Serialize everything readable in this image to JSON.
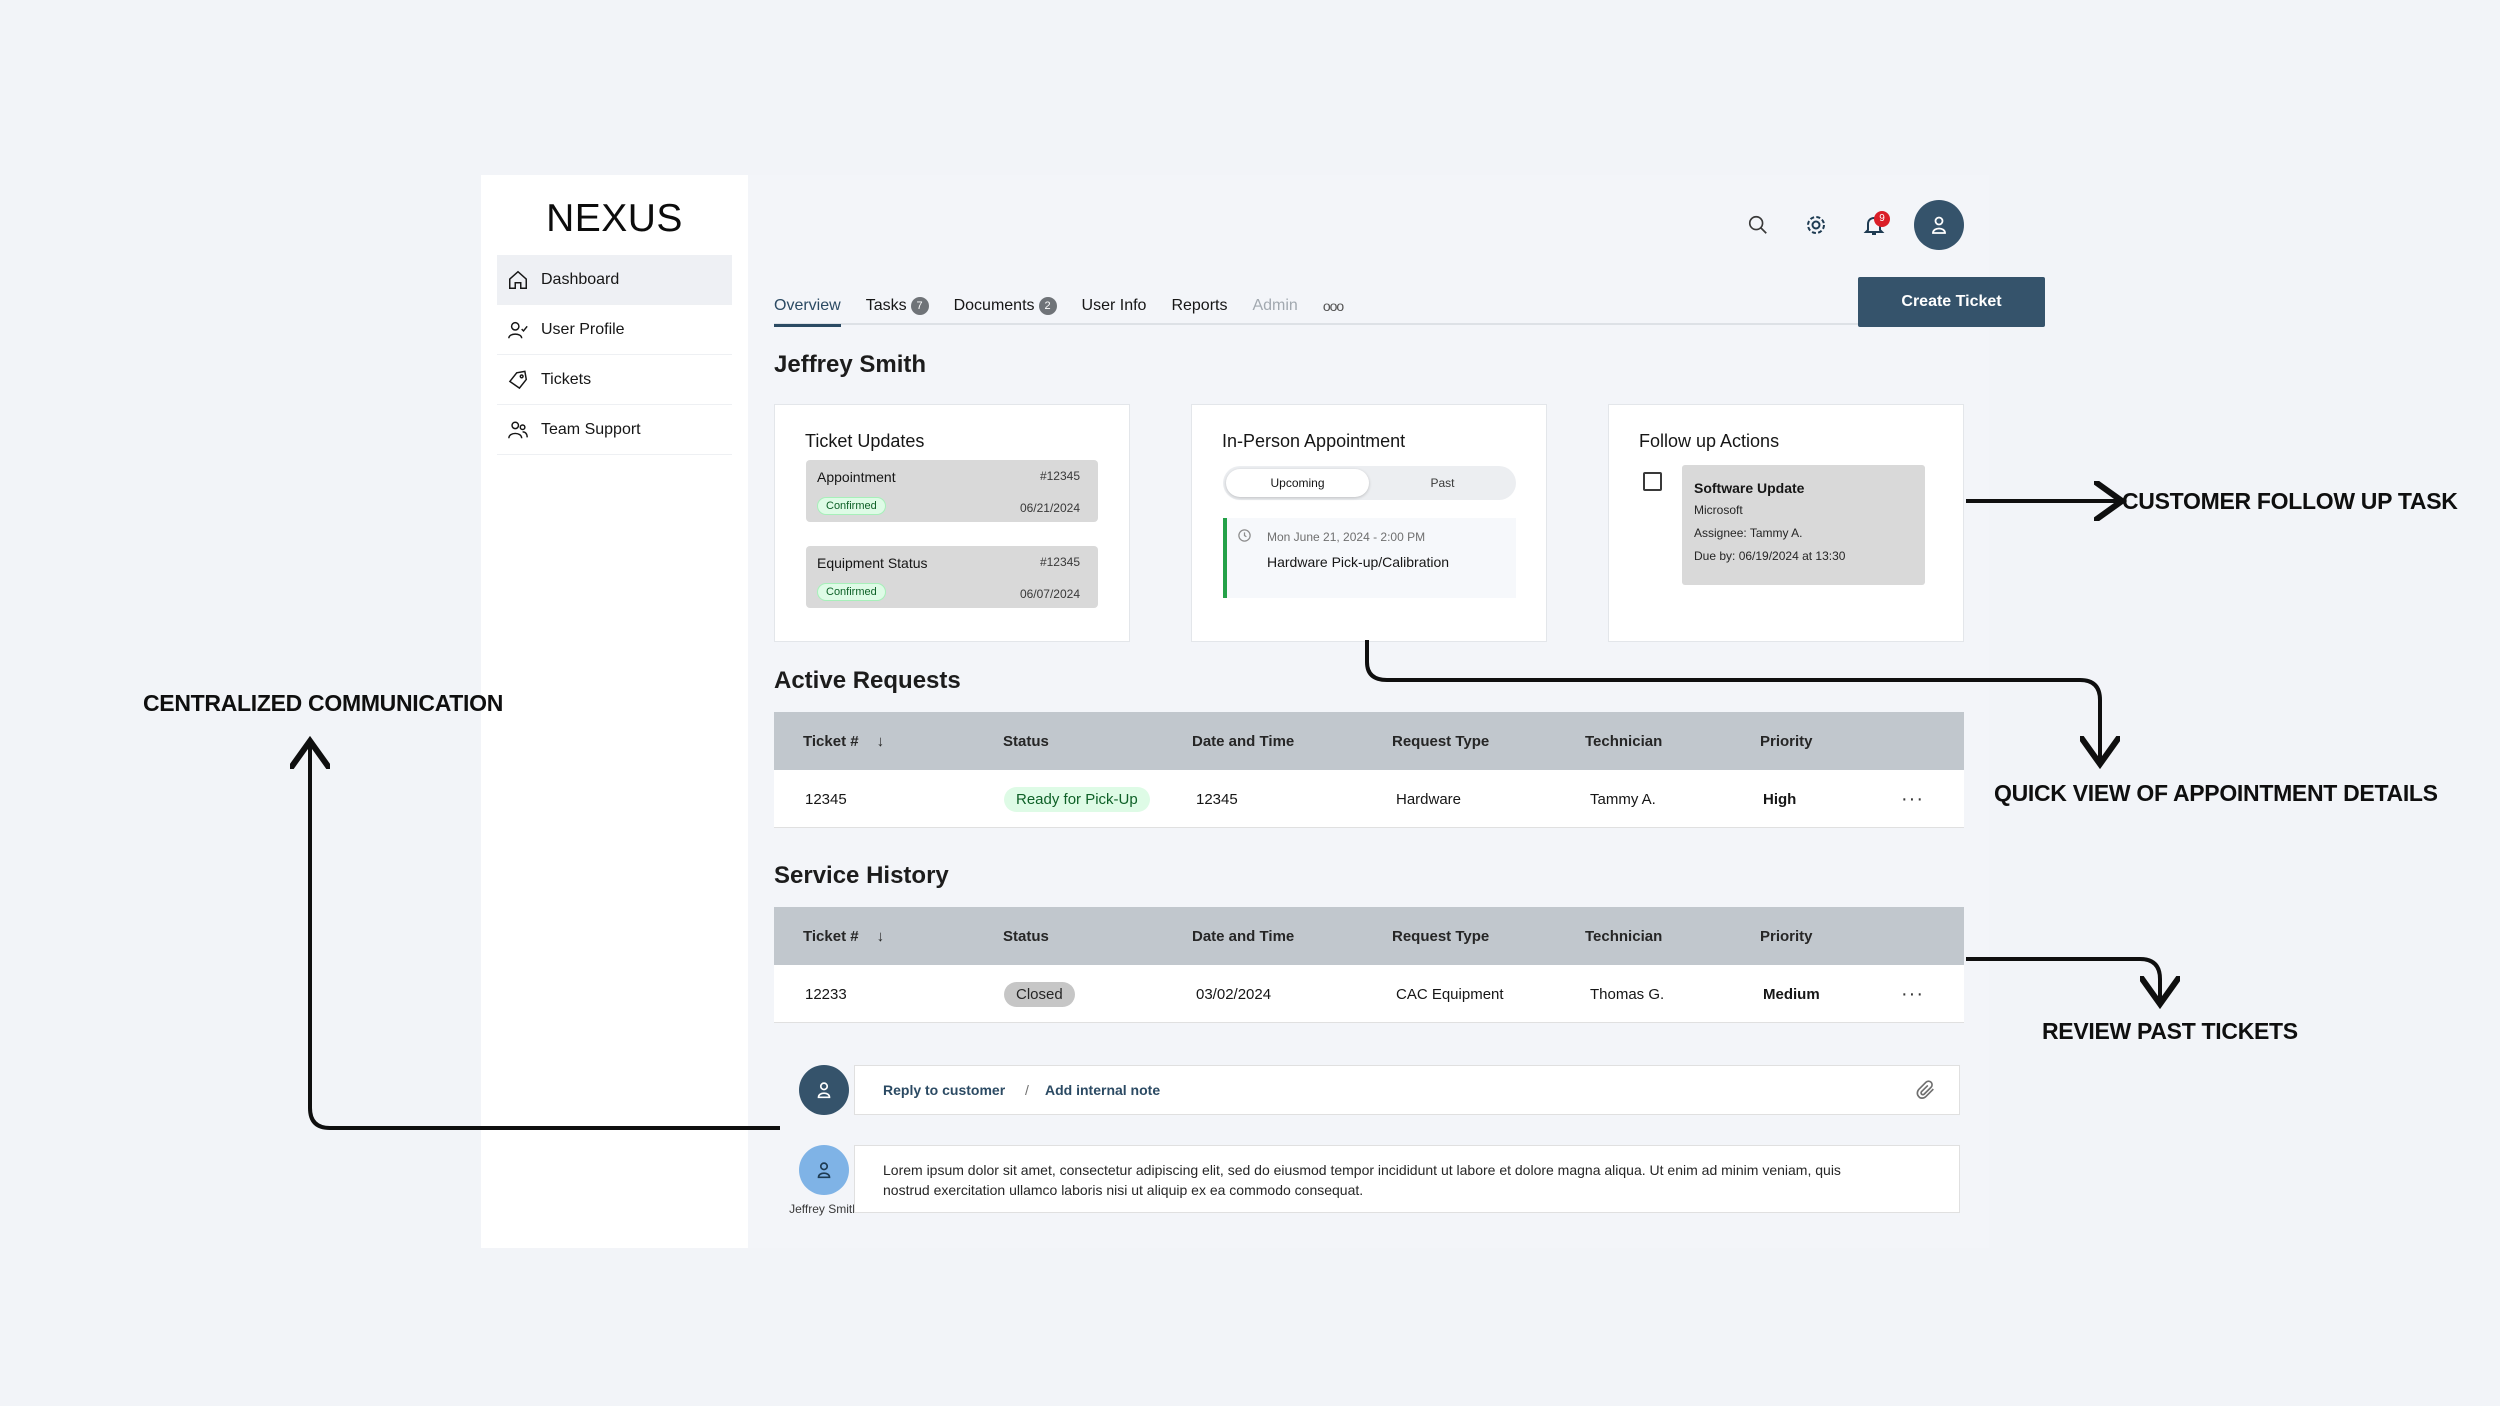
{
  "sidebar": {
    "logo": "NEXUS",
    "items": [
      {
        "label": "Dashboard",
        "icon": "home-icon"
      },
      {
        "label": "User Profile",
        "icon": "user-check-icon"
      },
      {
        "label": "Tickets",
        "icon": "ticket-icon"
      },
      {
        "label": "Team Support",
        "icon": "group-icon"
      }
    ]
  },
  "header": {
    "notification_count": "9"
  },
  "tabs": [
    {
      "label": "Overview",
      "count": ""
    },
    {
      "label": "Tasks",
      "count": "7"
    },
    {
      "label": "Documents",
      "count": "2"
    },
    {
      "label": "User Info",
      "count": ""
    },
    {
      "label": "Reports",
      "count": ""
    },
    {
      "label": "Admin",
      "count": ""
    },
    {
      "label": "ooo",
      "count": ""
    }
  ],
  "create_ticket_label": "Create Ticket",
  "user_name": "Jeffrey Smith",
  "ticket_updates": {
    "title": "Ticket Updates",
    "items": [
      {
        "label": "Appointment",
        "id": "#12345",
        "status": "Confirmed",
        "date": "06/21/2024"
      },
      {
        "label": "Equipment Status",
        "id": "#12345",
        "status": "Confirmed",
        "date": "06/07/2024"
      }
    ]
  },
  "appointment": {
    "title": "In-Person Appointment",
    "segments": [
      "Upcoming",
      "Past"
    ],
    "time": "Mon June 21, 2024 - 2:00 PM",
    "name": "Hardware Pick-up/Calibration"
  },
  "follow_up": {
    "title": "Follow up Actions",
    "task_title": "Software Update",
    "company": "Microsoft",
    "assignee": "Assignee: Tammy A.",
    "due": "Due by: 06/19/2024 at 13:30"
  },
  "active_requests": {
    "title": "Active Requests",
    "columns": [
      "Ticket #",
      "Status",
      "Date and Time",
      "Request Type",
      "Technician",
      "Priority"
    ],
    "rows": [
      {
        "ticket": "12345",
        "status": "Ready for Pick-Up",
        "datetime": "12345",
        "type": "Hardware",
        "tech": "Tammy A.",
        "priority": "High"
      }
    ]
  },
  "service_history": {
    "title": "Service History",
    "columns": [
      "Ticket #",
      "Status",
      "Date and Time",
      "Request Type",
      "Technician",
      "Priority"
    ],
    "rows": [
      {
        "ticket": "12233",
        "status": "Closed",
        "datetime": "03/02/2024",
        "type": "CAC Equipment",
        "tech": "Thomas G.",
        "priority": "Medium"
      }
    ]
  },
  "communication": {
    "reply_label": "Reply to customer",
    "separator": "/",
    "note_label": "Add internal note",
    "message": "Lorem ipsum dolor sit amet, consectetur adipiscing elit, sed do eiusmod tempor incididunt ut labore et dolore magna aliqua. Ut enim ad minim veniam, quis nostrud exercitation ullamco laboris nisi ut aliquip ex ea commodo consequat.",
    "sender_name": "Jeffrey Smith"
  },
  "annotations": {
    "follow_up": "CUSTOMER FOLLOW UP TASK",
    "centralized": "CENTRALIZED COMMUNICATION",
    "appointment": "QUICK VIEW OF APPOINTMENT DETAILS",
    "past": "REVIEW PAST TICKETS"
  },
  "colors": {
    "primary": "#35536b",
    "success": "#24a148",
    "alert": "#da1e28",
    "light_avatar": "#7fb3e6"
  }
}
